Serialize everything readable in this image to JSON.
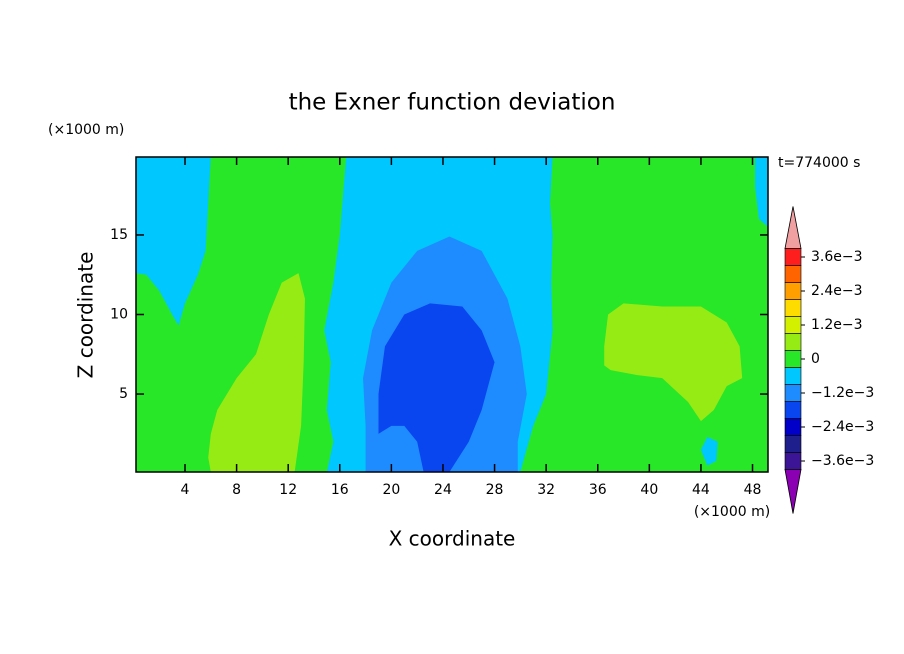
{
  "chart_data": {
    "type": "contour",
    "title": "the Exner function deviation",
    "x_label": "X coordinate",
    "y_label": "Z coordinate",
    "x_unit": "(×1000 m)",
    "y_unit": "(×1000 m)",
    "time_label": "t=774000 s",
    "xlim": [
      0.2,
      49.2
    ],
    "ylim": [
      0.1,
      19.9
    ],
    "xticks": [
      4,
      8,
      12,
      16,
      20,
      24,
      28,
      32,
      36,
      40,
      44,
      48
    ],
    "yticks": [
      5,
      10,
      15
    ],
    "background_value": 0,
    "levels": [
      -0.0036,
      -0.003,
      -0.0024,
      -0.0018,
      -0.0012,
      -0.0006,
      0,
      0.0006,
      0.0012,
      0.0018,
      0.0024,
      0.003,
      0.0036
    ],
    "colors": [
      "#3c1496",
      "#1e1e8c",
      "#0000c8",
      "#0a46f0",
      "#1e8cff",
      "#00c8ff",
      "#28e628",
      "#96eb14",
      "#d2f000",
      "#ffdc00",
      "#ffa000",
      "#ff6400",
      "#ff1e1e"
    ],
    "under_color": "#8c00b4",
    "over_color": "#f0a0a0",
    "colorbar_ticks": [
      {
        "value": 0.0036,
        "label": "3.6e−3"
      },
      {
        "value": 0.0024,
        "label": "2.4e−3"
      },
      {
        "value": 0.0012,
        "label": "1.2e−3"
      },
      0,
      {
        "value": -0.0012,
        "label": "−1.2e−3"
      },
      {
        "value": -0.0024,
        "label": "−2.4e−3"
      },
      {
        "value": -0.0036,
        "label": "−3.6e−3"
      }
    ],
    "regions": [
      {
        "value": -0.0006,
        "points": [
          [
            0.2,
            19.9
          ],
          [
            6,
            19.9
          ],
          [
            5.8,
            17
          ],
          [
            5.6,
            14
          ],
          [
            5,
            12.5
          ],
          [
            4,
            10.7
          ],
          [
            3.5,
            9.3
          ],
          [
            3,
            10
          ],
          [
            2,
            11.5
          ],
          [
            1,
            12.5
          ],
          [
            0.2,
            12.6
          ]
        ]
      },
      {
        "value": -0.0006,
        "points": [
          [
            16.5,
            19.9
          ],
          [
            32.5,
            19.9
          ],
          [
            32.3,
            17
          ],
          [
            32.5,
            15
          ],
          [
            32.4,
            12
          ],
          [
            32.5,
            9
          ],
          [
            32,
            5
          ],
          [
            31,
            3
          ],
          [
            30,
            0.1
          ],
          [
            15,
            0.1
          ],
          [
            15.5,
            2
          ],
          [
            15,
            4
          ],
          [
            15.3,
            7
          ],
          [
            14.8,
            9
          ],
          [
            15.5,
            12
          ],
          [
            16,
            15
          ],
          [
            16.3,
            18
          ]
        ]
      },
      {
        "value": -0.0006,
        "points": [
          [
            48.2,
            19.9
          ],
          [
            49.2,
            19.9
          ],
          [
            49.2,
            15.5
          ],
          [
            48.5,
            16
          ],
          [
            48.2,
            18
          ]
        ]
      },
      {
        "value": -0.0006,
        "points": [
          [
            44.5,
            0.5
          ],
          [
            44,
            1.5
          ],
          [
            44.5,
            2.3
          ],
          [
            45.3,
            2
          ],
          [
            45.2,
            0.8
          ]
        ]
      },
      {
        "value": -0.0012,
        "points": [
          [
            18,
            0.1
          ],
          [
            18,
            3
          ],
          [
            17.8,
            6
          ],
          [
            18.5,
            9
          ],
          [
            20,
            12
          ],
          [
            22,
            14
          ],
          [
            24.5,
            14.9
          ],
          [
            27,
            14
          ],
          [
            29,
            11
          ],
          [
            30,
            8
          ],
          [
            30.5,
            5
          ],
          [
            29.8,
            2
          ],
          [
            29.8,
            0.1
          ]
        ]
      },
      {
        "value": -0.0018,
        "points": [
          [
            19,
            2.5
          ],
          [
            19,
            5
          ],
          [
            19.5,
            8
          ],
          [
            21,
            10
          ],
          [
            23,
            10.7
          ],
          [
            25.5,
            10.5
          ],
          [
            27,
            9
          ],
          [
            28,
            7
          ],
          [
            27,
            4
          ],
          [
            26,
            2
          ],
          [
            24.5,
            0.1
          ],
          [
            22.5,
            0.1
          ],
          [
            22,
            2
          ],
          [
            21,
            3
          ],
          [
            20,
            3
          ]
        ]
      },
      {
        "value": 0.0006,
        "points": [
          [
            6,
            2.5
          ],
          [
            6.5,
            4
          ],
          [
            8,
            6
          ],
          [
            9.5,
            7.5
          ],
          [
            10.5,
            10
          ],
          [
            11.5,
            12
          ],
          [
            12.8,
            12.6
          ],
          [
            13.3,
            11
          ],
          [
            13.2,
            7
          ],
          [
            13,
            3
          ],
          [
            12.5,
            0.1
          ],
          [
            6,
            0.1
          ],
          [
            5.8,
            1
          ]
        ]
      },
      {
        "value": 0.0006,
        "points": [
          [
            36.5,
            8
          ],
          [
            36.8,
            10
          ],
          [
            38,
            10.7
          ],
          [
            41,
            10.5
          ],
          [
            44,
            10.5
          ],
          [
            46,
            9.5
          ],
          [
            47,
            8
          ],
          [
            47.2,
            6
          ],
          [
            46,
            5.5
          ],
          [
            45,
            4
          ],
          [
            44,
            3.3
          ],
          [
            43,
            4.5
          ],
          [
            41,
            6
          ],
          [
            39,
            6.2
          ],
          [
            37,
            6.5
          ],
          [
            36.5,
            6.8
          ]
        ]
      }
    ]
  }
}
